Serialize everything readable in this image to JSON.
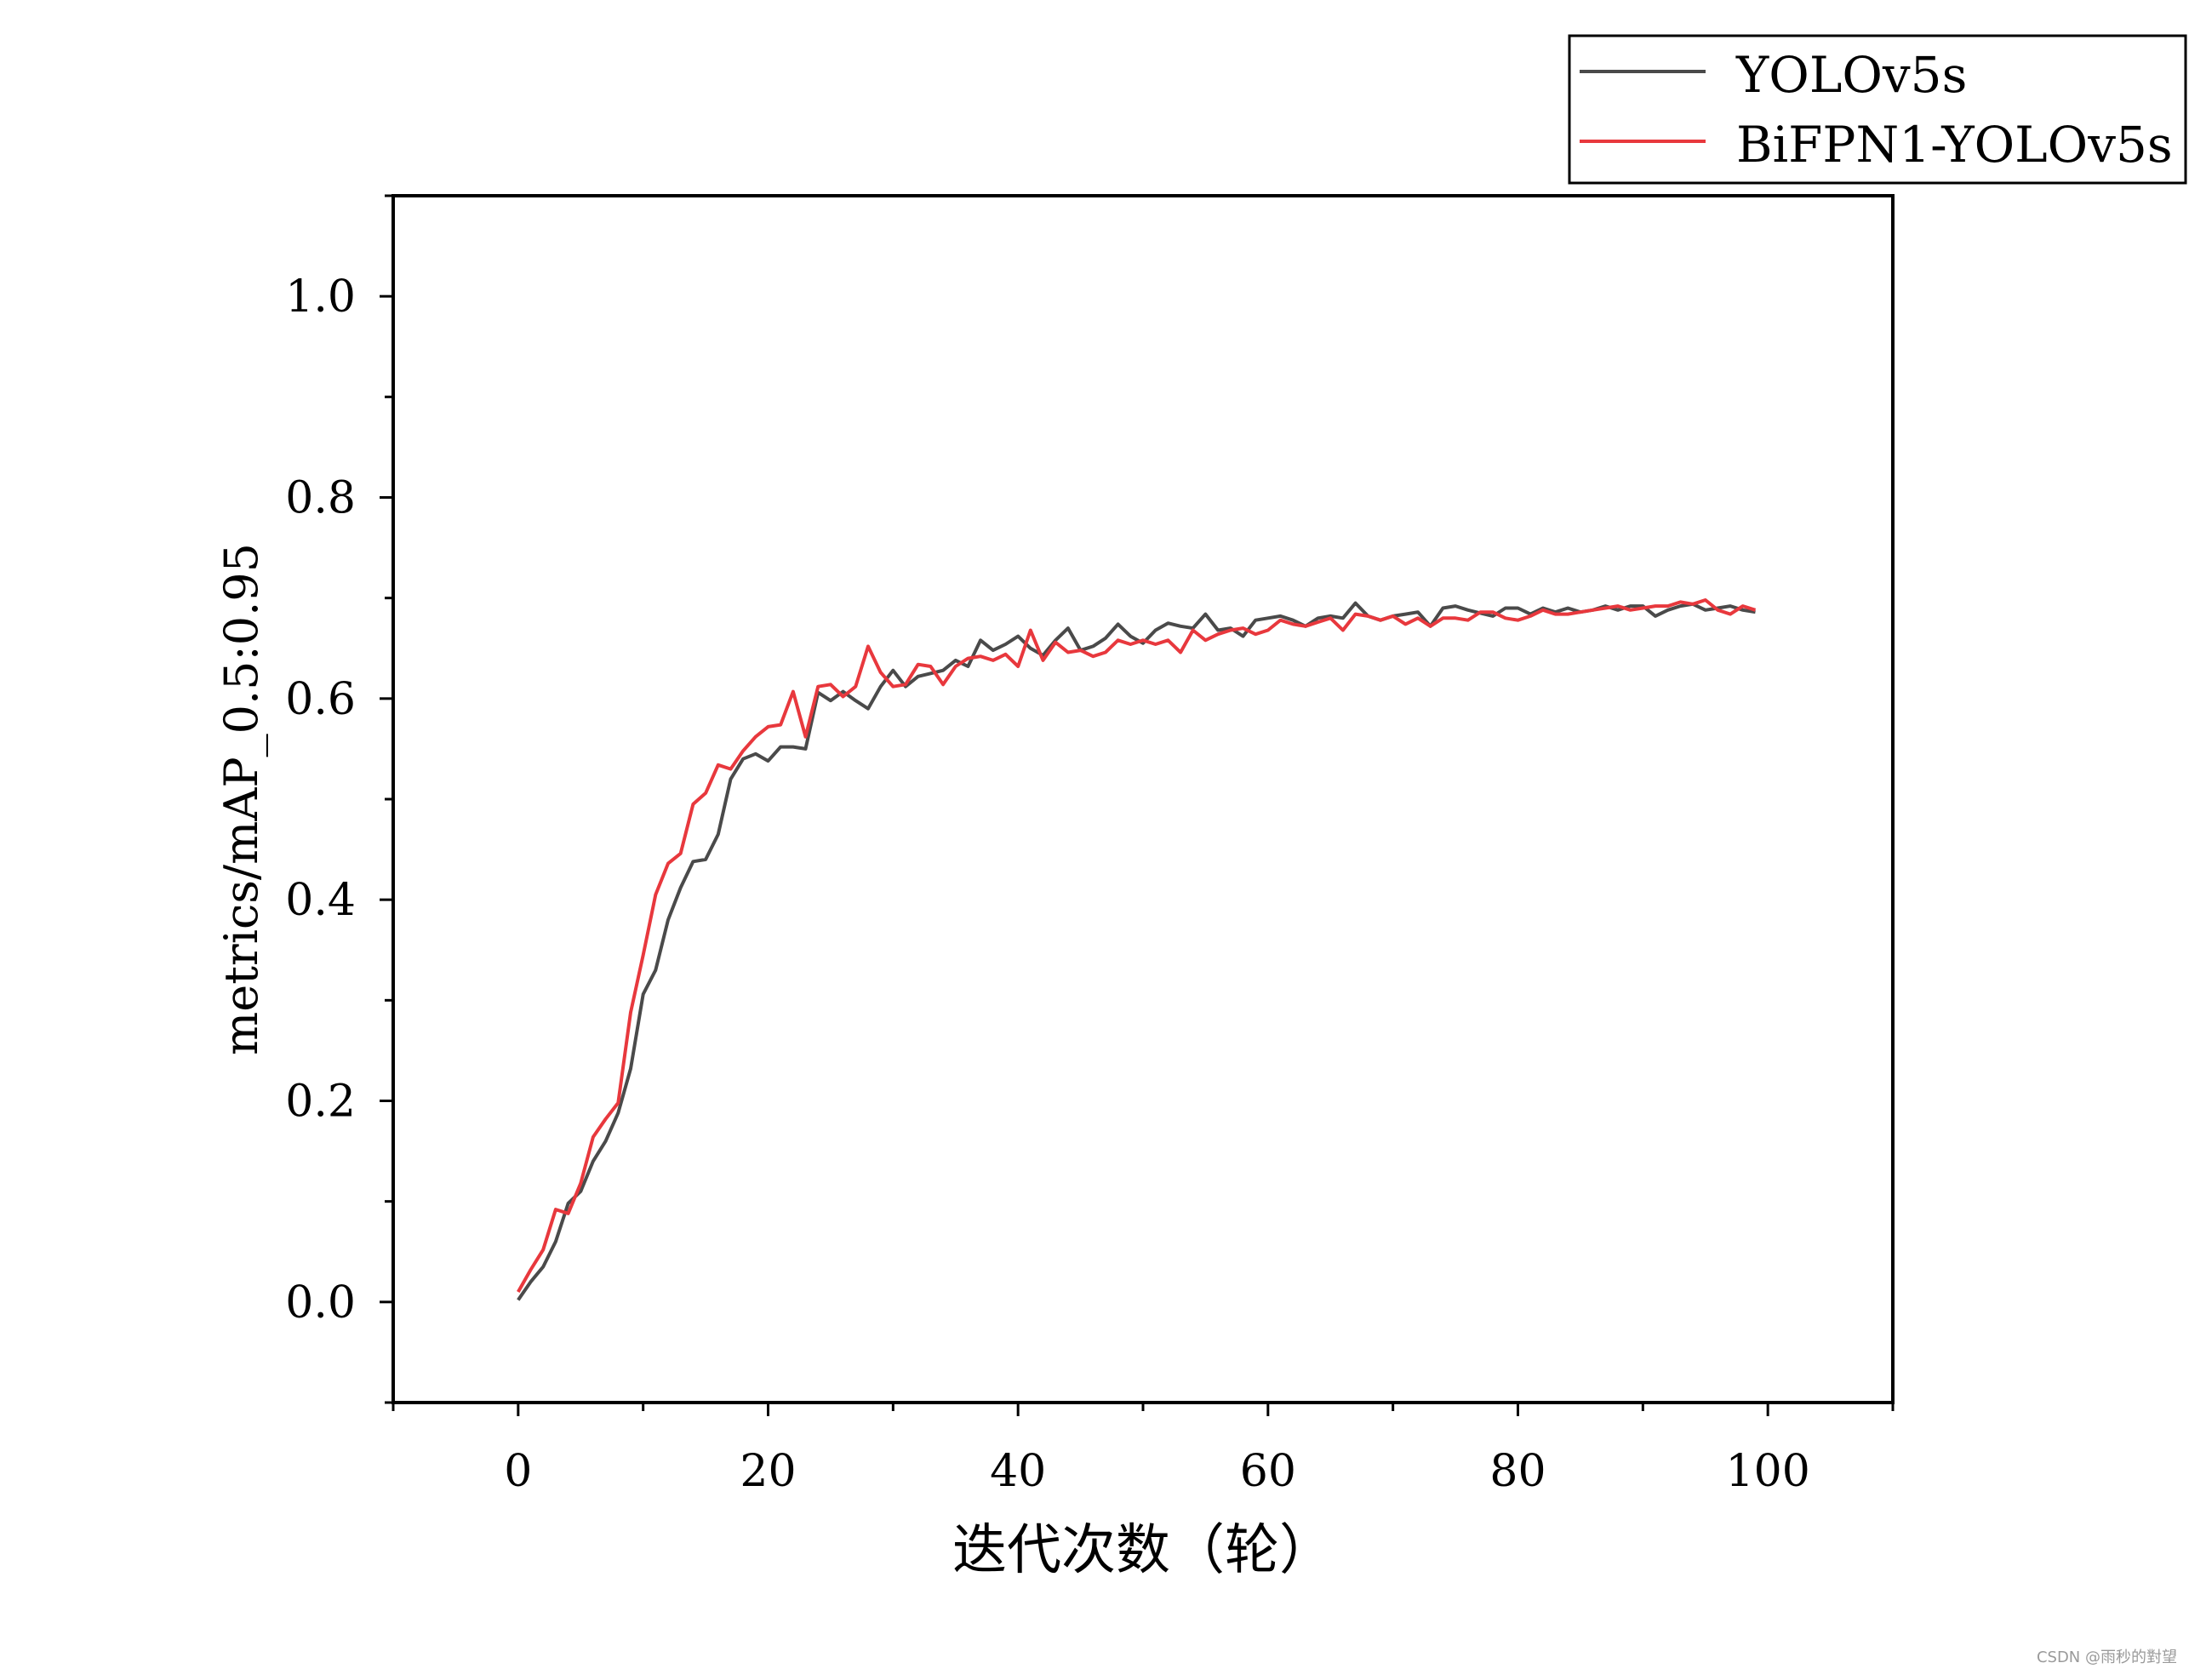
{
  "chart_data": {
    "type": "line",
    "title": "",
    "xlabel": "迭代次数（轮）",
    "ylabel": "metrics/mAP_0.5:0.95",
    "xlim": [
      -10,
      110
    ],
    "ylim": [
      -0.1,
      1.1
    ],
    "x_ticks": [
      "0",
      "20",
      "40",
      "60",
      "80",
      "100"
    ],
    "y_ticks": [
      "0.0",
      "0.2",
      "0.4",
      "0.6",
      "0.8",
      "1.0"
    ],
    "legend_position": "top-right",
    "grid": false,
    "series": [
      {
        "name": "YOLOv5s",
        "color": "#4a4a4a",
        "values": [
          0.002,
          0.02,
          0.035,
          0.06,
          0.098,
          0.11,
          0.14,
          0.16,
          0.188,
          0.232,
          0.306,
          0.33,
          0.38,
          0.412,
          0.438,
          0.44,
          0.465,
          0.52,
          0.54,
          0.545,
          0.538,
          0.552,
          0.552,
          0.55,
          0.606,
          0.598,
          0.607,
          0.598,
          0.59,
          0.612,
          0.628,
          0.612,
          0.622,
          0.625,
          0.628,
          0.638,
          0.632,
          0.658,
          0.648,
          0.654,
          0.662,
          0.65,
          0.643,
          0.658,
          0.67,
          0.648,
          0.652,
          0.66,
          0.674,
          0.662,
          0.655,
          0.668,
          0.675,
          0.672,
          0.67,
          0.684,
          0.668,
          0.67,
          0.662,
          0.678,
          0.68,
          0.682,
          0.678,
          0.672,
          0.68,
          0.682,
          0.68,
          0.695,
          0.682,
          0.678,
          0.682,
          0.684,
          0.686,
          0.672,
          0.69,
          0.692,
          0.688,
          0.685,
          0.682,
          0.69,
          0.69,
          0.684,
          0.69,
          0.686,
          0.69,
          0.686,
          0.688,
          0.692,
          0.688,
          0.692,
          0.692,
          0.682,
          0.688,
          0.692,
          0.694,
          0.688,
          0.69,
          0.692,
          0.688,
          0.686
        ]
      },
      {
        "name": "BiFPN1-YOLOv5s",
        "color": "#e8383d",
        "values": [
          0.01,
          0.032,
          0.052,
          0.092,
          0.088,
          0.118,
          0.164,
          0.182,
          0.198,
          0.288,
          0.345,
          0.405,
          0.436,
          0.446,
          0.495,
          0.506,
          0.534,
          0.53,
          0.548,
          0.562,
          0.572,
          0.574,
          0.607,
          0.562,
          0.612,
          0.614,
          0.602,
          0.612,
          0.652,
          0.626,
          0.612,
          0.614,
          0.634,
          0.632,
          0.614,
          0.632,
          0.64,
          0.642,
          0.638,
          0.644,
          0.632,
          0.668,
          0.638,
          0.656,
          0.646,
          0.648,
          0.642,
          0.646,
          0.658,
          0.654,
          0.658,
          0.654,
          0.658,
          0.646,
          0.668,
          0.658,
          0.664,
          0.668,
          0.67,
          0.664,
          0.668,
          0.678,
          0.674,
          0.672,
          0.676,
          0.68,
          0.668,
          0.684,
          0.682,
          0.678,
          0.682,
          0.674,
          0.68,
          0.672,
          0.68,
          0.68,
          0.678,
          0.686,
          0.686,
          0.68,
          0.678,
          0.682,
          0.688,
          0.684,
          0.684,
          0.686,
          0.688,
          0.69,
          0.692,
          0.688,
          0.69,
          0.692,
          0.692,
          0.696,
          0.694,
          0.698,
          0.688,
          0.684,
          0.692,
          0.688
        ]
      }
    ]
  },
  "watermark": "CSDN @雨秒的對望"
}
